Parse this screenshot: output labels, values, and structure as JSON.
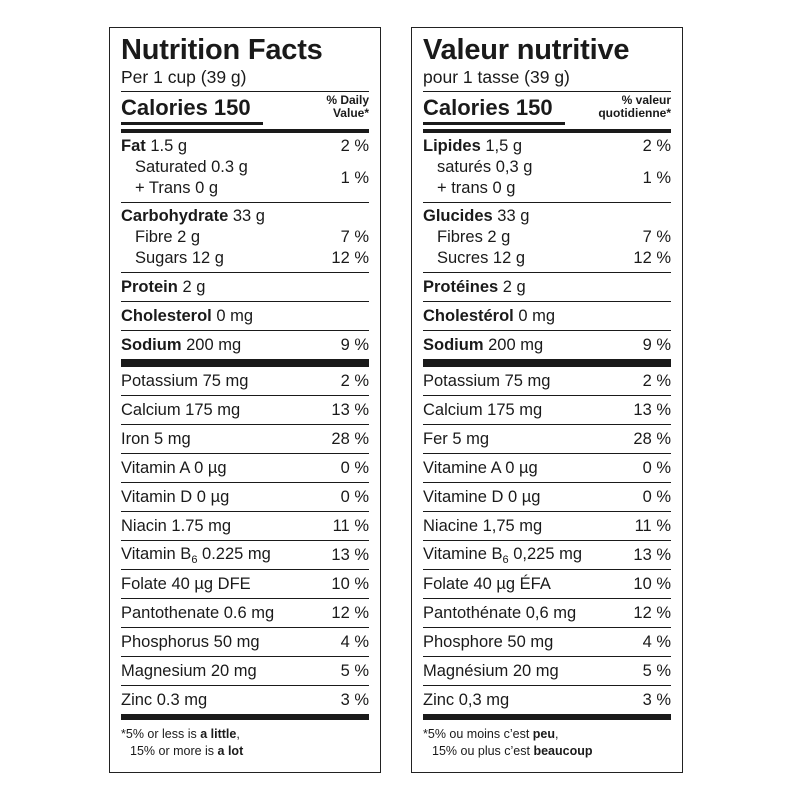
{
  "en": {
    "title": "Nutrition Facts",
    "serving": "Per 1 cup (39 g)",
    "calories_label": "Calories 150",
    "dv_header_line1": "% Daily",
    "dv_header_line2": "Value*",
    "fat": {
      "label": "Fat",
      "amount": "1.5 g",
      "pct": "2 %"
    },
    "saturated": "Saturated 0.3 g",
    "trans": "+ Trans 0 g",
    "sat_trans_pct": "1 %",
    "carb": {
      "label": "Carbohydrate",
      "amount": "33 g"
    },
    "fibre": {
      "label": "Fibre 2 g",
      "pct": "7 %"
    },
    "sugars": {
      "label": "Sugars 12 g",
      "pct": "12 %"
    },
    "protein": {
      "label": "Protein",
      "amount": "2 g"
    },
    "cholesterol": {
      "label": "Cholesterol",
      "amount": "0 mg"
    },
    "sodium": {
      "label": "Sodium",
      "amount": "200 mg",
      "pct": "9 %"
    },
    "minerals": [
      {
        "label": "Potassium 75 mg",
        "pct": "2 %"
      },
      {
        "label": "Calcium 175 mg",
        "pct": "13 %"
      },
      {
        "label": "Iron 5 mg",
        "pct": "28 %"
      },
      {
        "label": "Vitamin A 0 µg",
        "pct": "0 %"
      },
      {
        "label": "Vitamin D 0 µg",
        "pct": "0 %"
      },
      {
        "label": "Niacin 1.75 mg",
        "pct": "11 %"
      },
      {
        "label_pre": "Vitamin B",
        "label_sub": "6",
        "label_post": " 0.225 mg",
        "pct": "13 %"
      },
      {
        "label": "Folate 40 µg DFE",
        "pct": "10 %"
      },
      {
        "label": "Pantothenate 0.6 mg",
        "pct": "12 %"
      },
      {
        "label": "Phosphorus 50 mg",
        "pct": "4 %"
      },
      {
        "label": "Magnesium 20 mg",
        "pct": "5 %"
      },
      {
        "label": "Zinc 0.3 mg",
        "pct": "3 %"
      }
    ],
    "foot_line1_pre": "*5% or less is ",
    "foot_line1_bold": "a little",
    "foot_line1_post": ",",
    "foot_line2_pre": "15% or more is ",
    "foot_line2_bold": "a lot"
  },
  "fr": {
    "title": "Valeur nutritive",
    "serving": "pour 1 tasse (39 g)",
    "calories_label": "Calories 150",
    "dv_header_line1": "% valeur",
    "dv_header_line2": "quotidienne*",
    "fat": {
      "label": "Lipides",
      "amount": "1,5 g",
      "pct": "2 %"
    },
    "saturated": "saturés 0,3 g",
    "trans": "+ trans 0 g",
    "sat_trans_pct": "1 %",
    "carb": {
      "label": "Glucides",
      "amount": "33 g"
    },
    "fibre": {
      "label": "Fibres 2 g",
      "pct": "7 %"
    },
    "sugars": {
      "label": "Sucres 12 g",
      "pct": "12 %"
    },
    "protein": {
      "label": "Protéines",
      "amount": "2 g"
    },
    "cholesterol": {
      "label": "Cholestérol",
      "amount": "0 mg"
    },
    "sodium": {
      "label": "Sodium",
      "amount": "200 mg",
      "pct": "9 %"
    },
    "minerals": [
      {
        "label": "Potassium 75 mg",
        "pct": "2 %"
      },
      {
        "label": "Calcium 175 mg",
        "pct": "13 %"
      },
      {
        "label": "Fer 5 mg",
        "pct": "28 %"
      },
      {
        "label": "Vitamine A 0 µg",
        "pct": "0 %"
      },
      {
        "label": "Vitamine D 0 µg",
        "pct": "0 %"
      },
      {
        "label": "Niacine 1,75 mg",
        "pct": "11 %"
      },
      {
        "label_pre": "Vitamine B",
        "label_sub": "6",
        "label_post": " 0,225 mg",
        "pct": "13 %"
      },
      {
        "label": "Folate 40 µg ÉFA",
        "pct": "10 %"
      },
      {
        "label": "Pantothénate 0,6 mg",
        "pct": "12 %"
      },
      {
        "label": "Phosphore 50 mg",
        "pct": "4 %"
      },
      {
        "label": "Magnésium 20 mg",
        "pct": "5 %"
      },
      {
        "label": "Zinc 0,3 mg",
        "pct": "3 %"
      }
    ],
    "foot_line1_pre": "*5% ou moins c’est ",
    "foot_line1_bold": "peu",
    "foot_line1_post": ",",
    "foot_line2_pre": "15% ou plus c’est ",
    "foot_line2_bold": "beaucoup"
  }
}
